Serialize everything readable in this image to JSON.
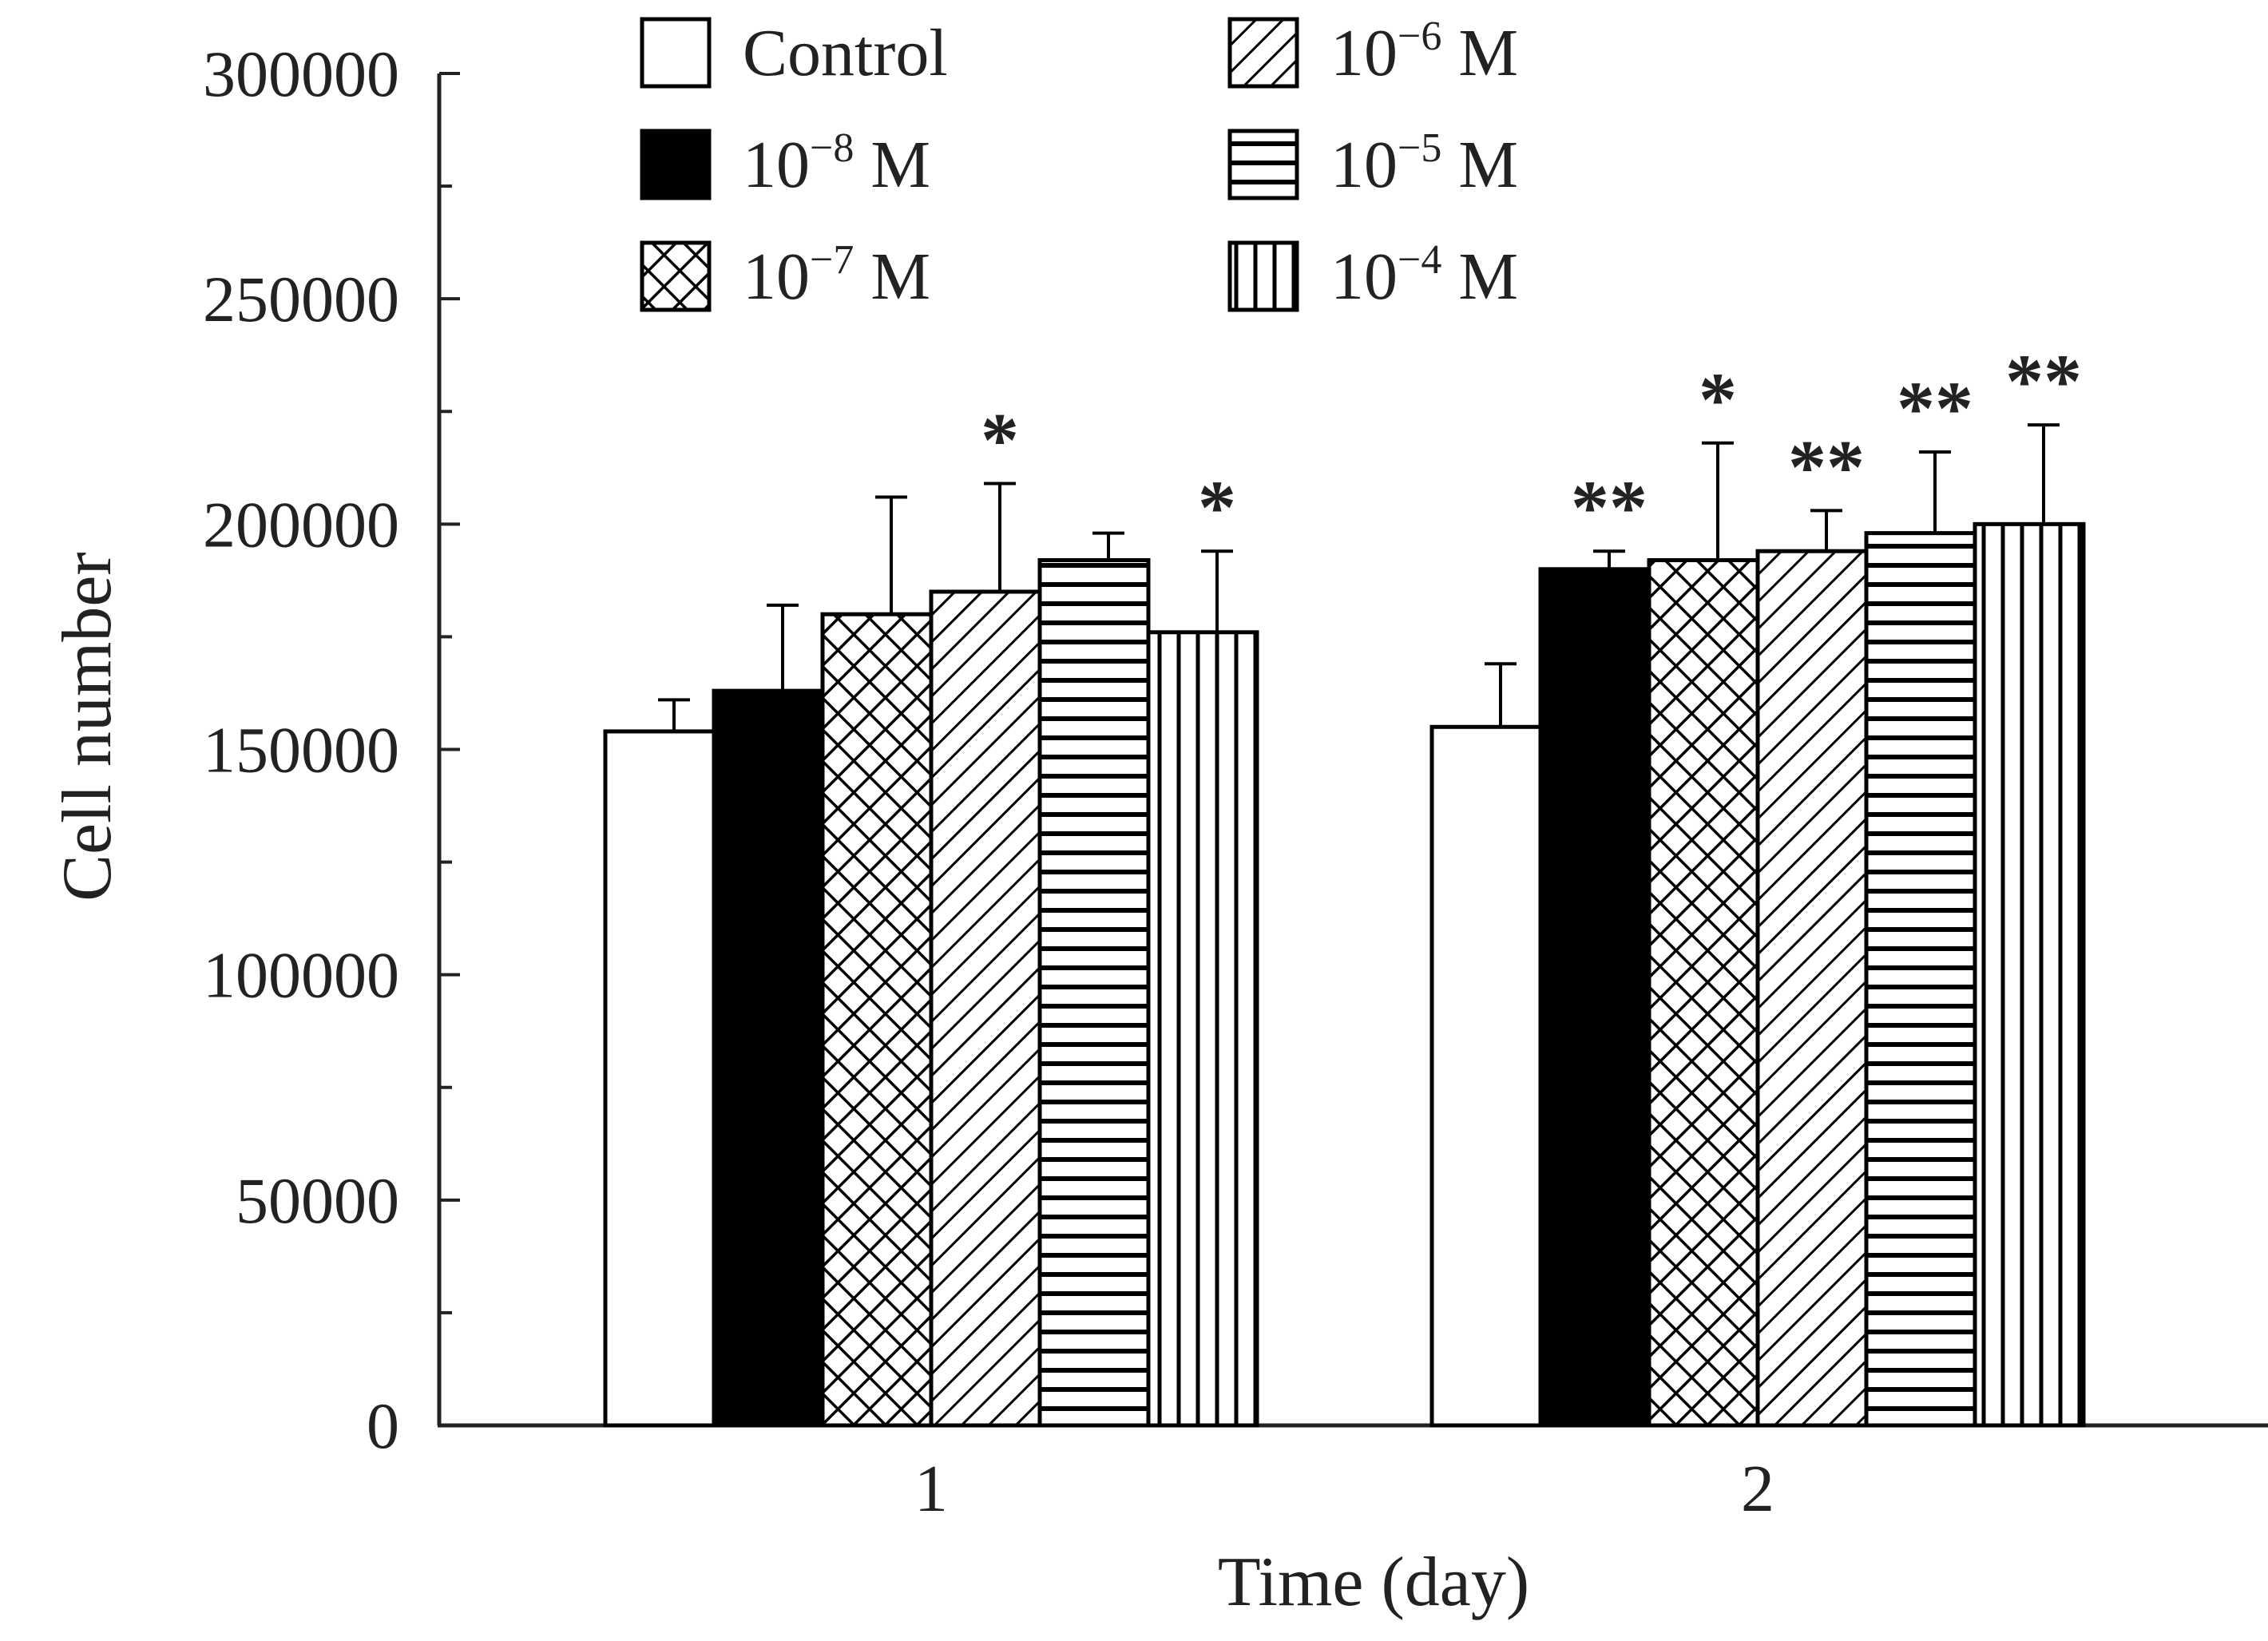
{
  "chart_data": {
    "type": "bar",
    "xlabel": "Time (day)",
    "ylabel": "Cell number",
    "ylim": [
      0,
      300000
    ],
    "yticks": [
      0,
      50000,
      100000,
      150000,
      200000,
      250000,
      300000
    ],
    "ytick_labels": [
      "0",
      "50000",
      "100000",
      "150000",
      "200000",
      "250000",
      "300000"
    ],
    "categories": [
      "1",
      "2"
    ],
    "legend_position": "top",
    "series": [
      {
        "name": "Control",
        "label_base": "Control",
        "label_exp": "",
        "label_unit": "",
        "pattern": "white",
        "values": [
          154000,
          155000
        ],
        "errors": [
          7000,
          14000
        ],
        "significance": [
          "",
          ""
        ]
      },
      {
        "name": "10−8 M",
        "label_base": "10",
        "label_exp": "−8",
        "label_unit": " M",
        "pattern": "black",
        "values": [
          163000,
          190000
        ],
        "errors": [
          19000,
          4000
        ],
        "significance": [
          "",
          "**"
        ]
      },
      {
        "name": "10−7 M",
        "label_base": "10",
        "label_exp": "−7",
        "label_unit": " M",
        "pattern": "crosshatch",
        "values": [
          180000,
          192000
        ],
        "errors": [
          26000,
          26000
        ],
        "significance": [
          "",
          "*"
        ]
      },
      {
        "name": "10−6 M",
        "label_base": "10",
        "label_exp": "−6",
        "label_unit": " M",
        "pattern": "diagonal",
        "values": [
          185000,
          194000
        ],
        "errors": [
          24000,
          9000
        ],
        "significance": [
          "*",
          "**"
        ]
      },
      {
        "name": "10−5 M",
        "label_base": "10",
        "label_exp": "−5",
        "label_unit": " M",
        "pattern": "horizontal",
        "values": [
          192000,
          198000
        ],
        "errors": [
          6000,
          18000
        ],
        "significance": [
          "",
          "**"
        ]
      },
      {
        "name": "10−4 M",
        "label_base": "10",
        "label_exp": "−4",
        "label_unit": " M",
        "pattern": "vertical",
        "values": [
          176000,
          200000
        ],
        "errors": [
          18000,
          22000
        ],
        "significance": [
          "*",
          "**"
        ]
      }
    ]
  }
}
